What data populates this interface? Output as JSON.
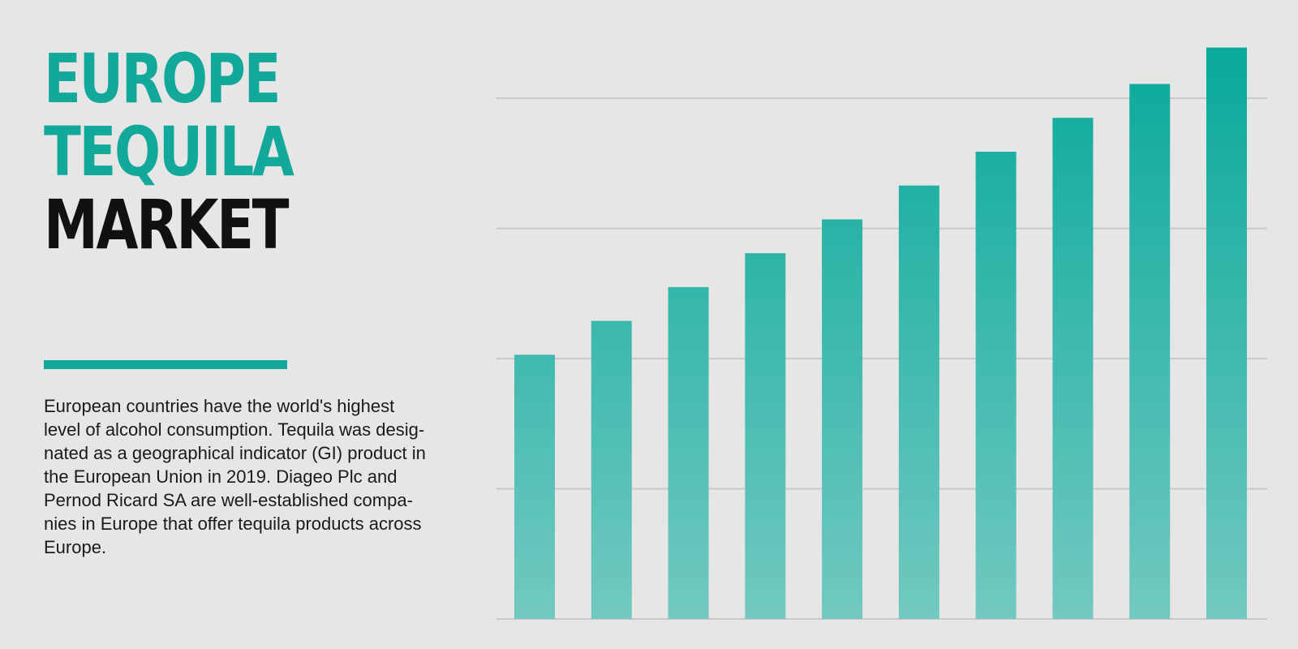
{
  "title": {
    "line1": "EUROPE",
    "line2": "TEQUILA",
    "line3": "MARKET"
  },
  "description": {
    "lines": [
      "European countries have the world's highest",
      "level of alcohol consumption. Tequila was desig-",
      "nated as a geographical indicator (GI) product in",
      "the European Union in 2019. Diageo Plc and",
      "Pernod Ricard SA are well-established compa-",
      "nies in Europe that offer tequila products across",
      "Europe."
    ]
  },
  "colors": {
    "accent": "#12a99b",
    "background": "#e6e6e6",
    "bar_top": "#08a99b",
    "bar_bottom": "#72c9c0",
    "gridline": "#c8c8c8"
  },
  "chart_data": {
    "type": "bar",
    "categories": [
      "",
      "",
      "",
      "",
      "",
      "",
      "",
      "",
      "",
      ""
    ],
    "values": [
      2.03,
      2.29,
      2.55,
      2.81,
      3.07,
      3.33,
      3.59,
      3.85,
      4.11,
      4.39
    ],
    "ylim": [
      0,
      4.4
    ],
    "gridlines": [
      1,
      2,
      3,
      4
    ],
    "grid": true,
    "legend": "none",
    "title": "",
    "xlabel": "",
    "ylabel": ""
  }
}
